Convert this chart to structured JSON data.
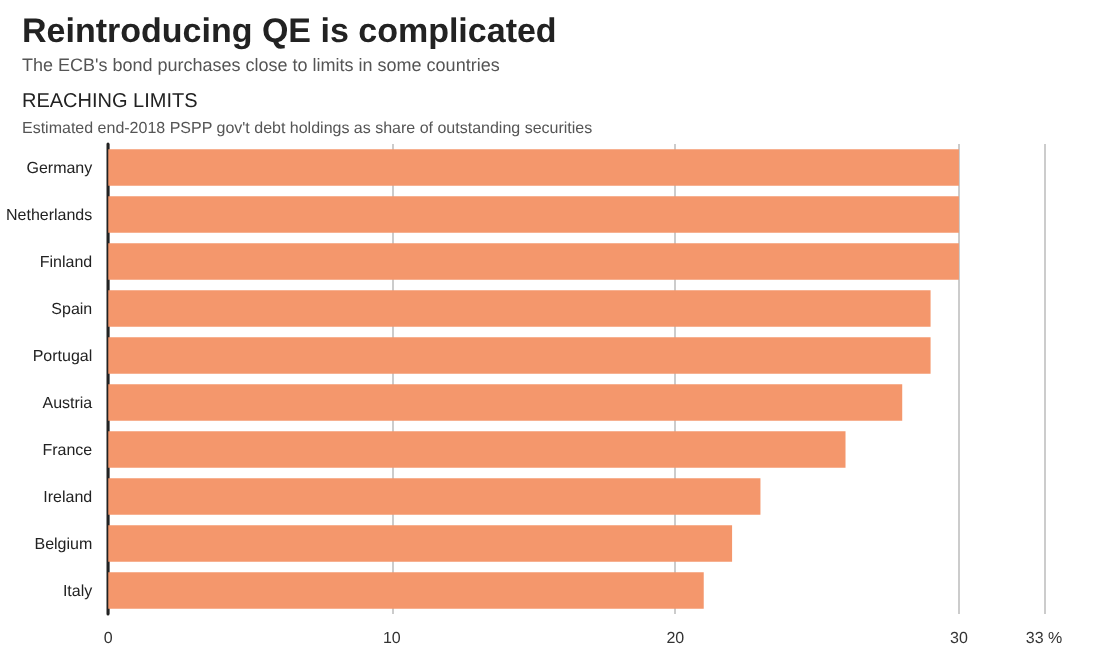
{
  "chart_data": {
    "type": "bar",
    "orientation": "horizontal",
    "title": "Reintroducing QE is complicated",
    "subtitle": "The ECB's bond purchases close to limits in some countries",
    "annotations": [
      "REACHING LIMITS",
      "Estimated end-2018 PSPP gov't debt holdings as share of outstanding securities"
    ],
    "categories": [
      "Germany",
      "Netherlands",
      "Finland",
      "Spain",
      "Portugal",
      "Austria",
      "France",
      "Ireland",
      "Belgium",
      "Italy"
    ],
    "values": [
      30,
      30,
      30,
      29,
      29,
      28,
      26,
      23,
      22,
      21
    ],
    "color": "#f4976c",
    "xlim": [
      0,
      33
    ],
    "xticks": [
      0,
      10,
      20,
      30,
      {
        "value": 33,
        "label": "33 %"
      }
    ],
    "grid": "x"
  }
}
